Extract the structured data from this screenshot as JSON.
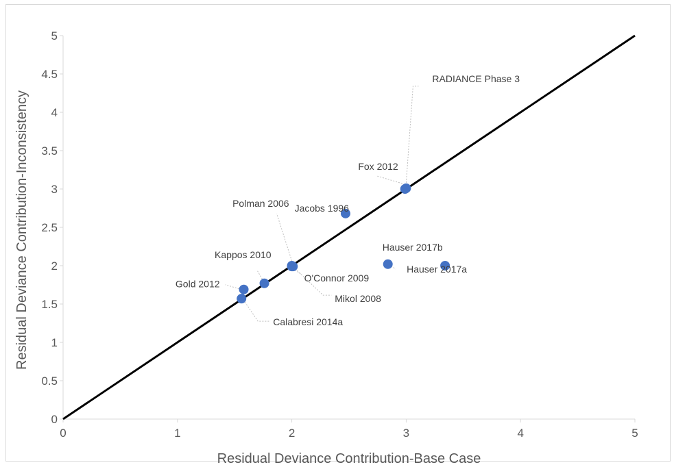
{
  "chart_data": {
    "type": "scatter",
    "title": "",
    "xlabel": "Residual Deviance Contribution-Base Case",
    "ylabel": "Residual Deviance Contribution-Inconsistency",
    "xlim": [
      0,
      5
    ],
    "ylim": [
      0,
      5
    ],
    "x_ticks": [
      "0",
      "1",
      "2",
      "3",
      "4",
      "5"
    ],
    "y_ticks": [
      "0",
      "0.5",
      "1",
      "1.5",
      "2",
      "2.5",
      "3",
      "3.5",
      "4",
      "4.5",
      "5"
    ],
    "grid": false,
    "legend": "none",
    "marker_color": "#4472c4",
    "reference_line": {
      "from": [
        0,
        0
      ],
      "to": [
        5,
        5
      ],
      "color": "#000000"
    },
    "points": [
      {
        "label": "RADIANCE Phase 3",
        "x": 3.0,
        "y": 3.01
      },
      {
        "label": "Fox 2012",
        "x": 2.99,
        "y": 3.0
      },
      {
        "label": "Jacobs 1996",
        "x": 2.47,
        "y": 2.68
      },
      {
        "label": "Polman 2006",
        "x": 2.0,
        "y": 2.0
      },
      {
        "label": "Kappos 2010",
        "x": 1.76,
        "y": 1.77
      },
      {
        "label": "O'Connor 2009",
        "x": 2.0,
        "y": 1.99
      },
      {
        "label": "Mikol 2008",
        "x": 2.01,
        "y": 1.99
      },
      {
        "label": "Gold 2012",
        "x": 1.58,
        "y": 1.69
      },
      {
        "label": "Calabresi 2014a",
        "x": 1.56,
        "y": 1.57
      },
      {
        "label": "Hauser 2017b",
        "x": 2.84,
        "y": 2.02
      },
      {
        "label": "Hauser 2017a",
        "x": 3.34,
        "y": 2.0
      }
    ]
  }
}
